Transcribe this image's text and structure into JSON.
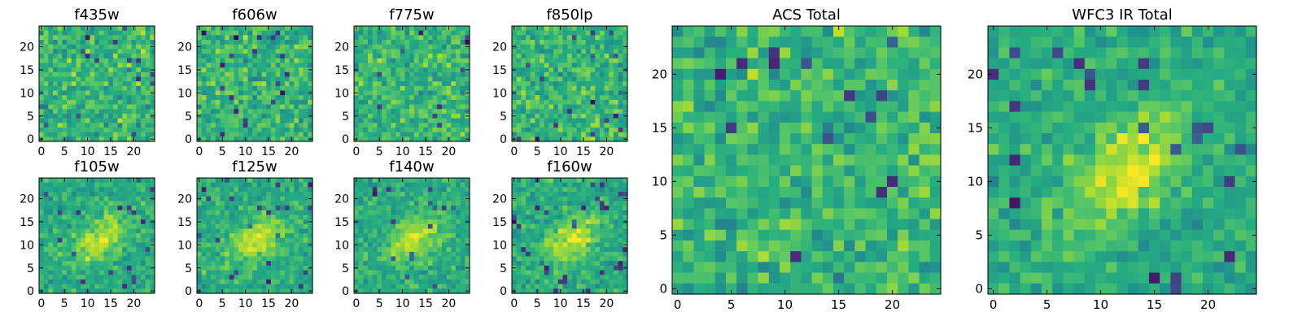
{
  "chart_data": [
    {
      "type": "heatmap",
      "title": "f435w",
      "xticks": [
        0,
        5,
        10,
        15,
        20
      ],
      "yticks": [
        0,
        5,
        10,
        15,
        20
      ],
      "xlim": [
        0,
        25
      ],
      "ylim": [
        0,
        25
      ],
      "grid": false,
      "colormap": "viridis",
      "pattern": "noise"
    },
    {
      "type": "heatmap",
      "title": "f606w",
      "xticks": [
        0,
        5,
        10,
        15,
        20
      ],
      "yticks": [
        0,
        5,
        10,
        15,
        20
      ],
      "xlim": [
        0,
        25
      ],
      "ylim": [
        0,
        25
      ],
      "grid": false,
      "colormap": "viridis",
      "pattern": "noise"
    },
    {
      "type": "heatmap",
      "title": "f775w",
      "xticks": [
        0,
        5,
        10,
        15,
        20
      ],
      "yticks": [
        0,
        5,
        10,
        15,
        20
      ],
      "xlim": [
        0,
        25
      ],
      "ylim": [
        0,
        25
      ],
      "grid": false,
      "colormap": "viridis",
      "pattern": "noise"
    },
    {
      "type": "heatmap",
      "title": "f850lp",
      "xticks": [
        0,
        5,
        10,
        15,
        20
      ],
      "yticks": [
        0,
        5,
        10,
        15,
        20
      ],
      "xlim": [
        0,
        25
      ],
      "ylim": [
        0,
        25
      ],
      "grid": false,
      "colormap": "viridis",
      "pattern": "noise"
    },
    {
      "type": "heatmap",
      "title": "f105w",
      "xticks": [
        0,
        5,
        10,
        15,
        20
      ],
      "yticks": [
        0,
        5,
        10,
        15,
        20
      ],
      "xlim": [
        0,
        25
      ],
      "ylim": [
        0,
        25
      ],
      "grid": false,
      "colormap": "viridis",
      "pattern": "source"
    },
    {
      "type": "heatmap",
      "title": "f125w",
      "xticks": [
        0,
        5,
        10,
        15,
        20
      ],
      "yticks": [
        0,
        5,
        10,
        15,
        20
      ],
      "xlim": [
        0,
        25
      ],
      "ylim": [
        0,
        25
      ],
      "grid": false,
      "colormap": "viridis",
      "pattern": "source"
    },
    {
      "type": "heatmap",
      "title": "f140w",
      "xticks": [
        0,
        5,
        10,
        15,
        20
      ],
      "yticks": [
        0,
        5,
        10,
        15,
        20
      ],
      "xlim": [
        0,
        25
      ],
      "ylim": [
        0,
        25
      ],
      "grid": false,
      "colormap": "viridis",
      "pattern": "source"
    },
    {
      "type": "heatmap",
      "title": "f160w",
      "xticks": [
        0,
        5,
        10,
        15,
        20
      ],
      "yticks": [
        0,
        5,
        10,
        15,
        20
      ],
      "xlim": [
        0,
        25
      ],
      "ylim": [
        0,
        25
      ],
      "grid": false,
      "colormap": "viridis",
      "pattern": "source"
    },
    {
      "type": "heatmap",
      "title": "ACS Total",
      "xticks": [
        0,
        5,
        10,
        15,
        20
      ],
      "yticks": [
        0,
        5,
        10,
        15,
        20
      ],
      "xlim": [
        0,
        25
      ],
      "ylim": [
        0,
        25
      ],
      "grid": false,
      "colormap": "viridis",
      "pattern": "noise"
    },
    {
      "type": "heatmap",
      "title": "WFC3 IR Total",
      "xticks": [
        0,
        5,
        10,
        15,
        20
      ],
      "yticks": [
        0,
        5,
        10,
        15,
        20
      ],
      "xlim": [
        0,
        25
      ],
      "ylim": [
        0,
        25
      ],
      "grid": false,
      "colormap": "viridis",
      "pattern": "source"
    }
  ]
}
